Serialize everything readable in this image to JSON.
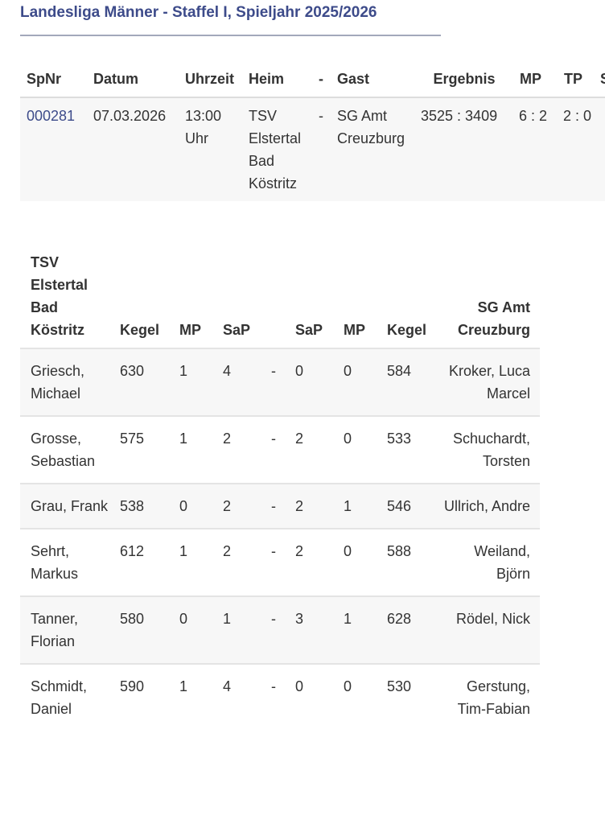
{
  "title": "Landesliga Männer - Staffel I, Spieljahr 2025/2026",
  "match": {
    "headers": [
      "SpNr",
      "Datum",
      "Uhrzeit",
      "Heim",
      "-",
      "Gast",
      "Ergebnis",
      "MP",
      "TP",
      "S"
    ],
    "row": {
      "spnr": "000281",
      "datum": "07.03.2026",
      "uhrzeit": "13:00 Uhr",
      "heim": "TSV Elstertal Bad Köstritz",
      "sep": "-",
      "gast": "SG Amt Creuzburg",
      "ergebnis": "3525 : 3409",
      "mp": "6 : 2",
      "tp": "2 : 0"
    }
  },
  "players": {
    "headers": [
      "TSV Elstertal Bad Köstritz",
      "Kegel",
      "MP",
      "SaP",
      "",
      "SaP",
      "MP",
      "Kegel",
      "SG Amt Creuzburg"
    ],
    "rows": [
      {
        "home": "Griesch, Michael",
        "hk": "630",
        "hmp": "1",
        "hsap": "4",
        "sep": "-",
        "gsap": "0",
        "gmp": "0",
        "gk": "584",
        "guest": "Kroker, Luca Marcel"
      },
      {
        "home": "Grosse, Sebastian",
        "hk": "575",
        "hmp": "1",
        "hsap": "2",
        "sep": "-",
        "gsap": "2",
        "gmp": "0",
        "gk": "533",
        "guest": "Schuchardt, Torsten"
      },
      {
        "home": "Grau, Frank",
        "hk": "538",
        "hmp": "0",
        "hsap": "2",
        "sep": "-",
        "gsap": "2",
        "gmp": "1",
        "gk": "546",
        "guest": "Ullrich, Andre"
      },
      {
        "home": "Sehrt, Markus",
        "hk": "612",
        "hmp": "1",
        "hsap": "2",
        "sep": "-",
        "gsap": "2",
        "gmp": "0",
        "gk": "588",
        "guest": "Weiland, Björn"
      },
      {
        "home": "Tanner, Florian",
        "hk": "580",
        "hmp": "0",
        "hsap": "1",
        "sep": "-",
        "gsap": "3",
        "gmp": "1",
        "gk": "628",
        "guest": "Rödel, Nick"
      },
      {
        "home": "Schmidt, Daniel",
        "hk": "590",
        "hmp": "1",
        "hsap": "4",
        "sep": "-",
        "gsap": "0",
        "gmp": "0",
        "gk": "530",
        "guest": "Gerstung, Tim-Fabian"
      }
    ]
  },
  "colors": {
    "title": "#3d4b8a",
    "link": "#3d4b8a",
    "stripe": "#f7f7f7"
  }
}
